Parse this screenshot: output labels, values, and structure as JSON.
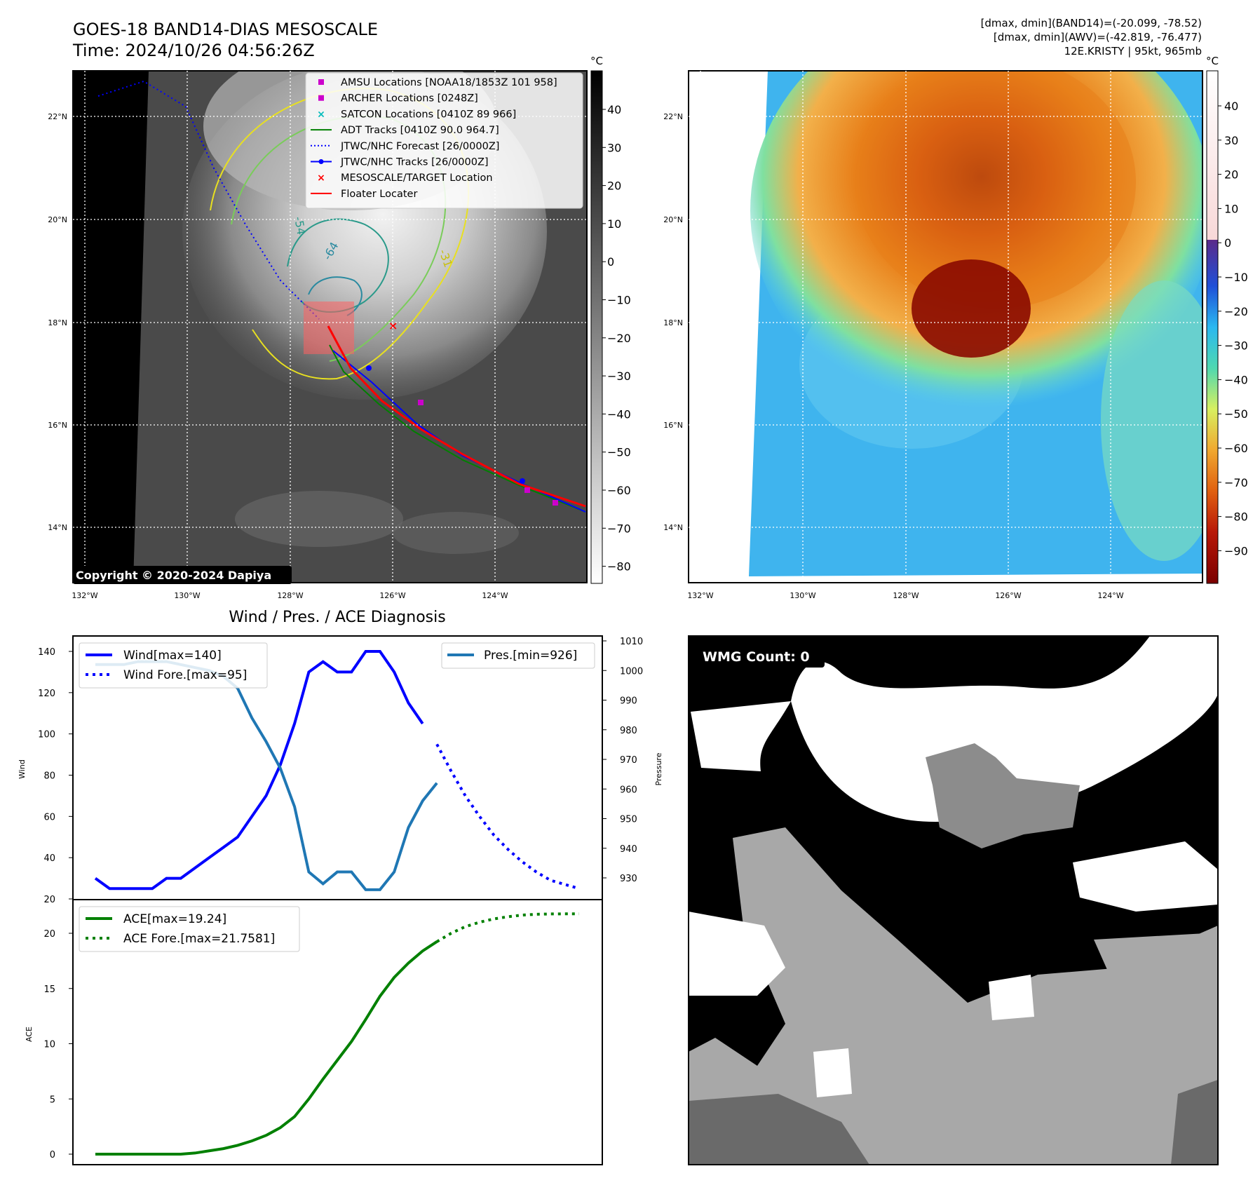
{
  "header": {
    "title": "GOES-18 BAND14-DIAS MESOSCALE",
    "time": "Time: 2024/10/26 04:56:26Z",
    "stats_band14": "[dmax, dmin](BAND14)=(-20.099, -78.52)",
    "stats_awv": "[dmax, dmin](AWV)=(-42.819, -76.477)",
    "storm": "12E.KRISTY | 95kt, 965mb"
  },
  "maps": {
    "lat_ticks": [
      "22°N",
      "20°N",
      "18°N",
      "16°N",
      "14°N"
    ],
    "lon_ticks": [
      "132°W",
      "130°W",
      "128°W",
      "126°W",
      "124°W"
    ],
    "copyright": "Copyright © 2020-2024 Dapiya",
    "contour_labels": [
      "-64",
      "-54",
      "-31"
    ],
    "legend": [
      {
        "label": "AMSU Locations [NOAA18/1853Z 101 958]",
        "color": "#cc00cc",
        "marker": "square"
      },
      {
        "label": "ARCHER Locations [0248Z]",
        "color": "#cc00cc",
        "marker": "square"
      },
      {
        "label": "SATCON Locations [0410Z 89 966]",
        "color": "#00bbbb",
        "marker": "x"
      },
      {
        "label": "ADT Tracks [0410Z 90.0 964.7]",
        "color": "#008000",
        "marker": "line"
      },
      {
        "label": "JTWC/NHC Forecast [26/0000Z]",
        "color": "#0000ff",
        "marker": "dotted"
      },
      {
        "label": "JTWC/NHC Tracks [26/0000Z]",
        "color": "#0000ff",
        "marker": "line-dot"
      },
      {
        "label": "MESOSCALE/TARGET Location",
        "color": "#ff0000",
        "marker": "x"
      },
      {
        "label": "Floater Locater",
        "color": "#ff0000",
        "marker": "line"
      }
    ]
  },
  "colorbars": {
    "unit": "°C",
    "ir_ticks": [
      "40",
      "30",
      "20",
      "10",
      "0",
      "−10",
      "−20",
      "−30",
      "−40",
      "−50",
      "−60",
      "−70",
      "−80"
    ],
    "awv_ticks": [
      "40",
      "30",
      "20",
      "10",
      "0",
      "−10",
      "−20",
      "−30",
      "−40",
      "−50",
      "−60",
      "−70",
      "−80",
      "−90"
    ]
  },
  "diagnosis": {
    "title": "Wind / Pres. / ACE Diagnosis"
  },
  "wmg": {
    "label": "WMG Count: 0"
  },
  "chart_data": [
    {
      "type": "line",
      "title": "Wind / Pres. / ACE Diagnosis",
      "ylabel": "Wind",
      "y2label": "Pressure",
      "ylim": [
        20,
        145
      ],
      "y2lim": [
        925,
        1011
      ],
      "yticks": [
        "20",
        "40",
        "60",
        "80",
        "100",
        "120",
        "140"
      ],
      "y2ticks": [
        "930",
        "940",
        "950",
        "960",
        "970",
        "980",
        "990",
        "1000",
        "1010"
      ],
      "x": [
        0,
        1,
        2,
        3,
        4,
        5,
        6,
        7,
        8,
        9,
        10,
        11,
        12,
        13,
        14,
        15,
        16,
        17,
        18,
        19,
        20,
        21,
        22,
        23,
        24,
        25,
        26,
        27,
        28,
        29,
        30,
        31,
        32,
        33,
        34
      ],
      "series": [
        {
          "name": "Wind[max=140]",
          "color": "#0000ff",
          "style": "solid",
          "x": [
            0,
            1,
            2,
            3,
            4,
            5,
            6,
            7,
            8,
            9,
            10,
            11,
            12,
            13,
            14,
            15,
            16,
            17,
            18,
            19,
            20,
            21,
            22,
            23
          ],
          "values": [
            30,
            25,
            25,
            25,
            25,
            30,
            30,
            35,
            40,
            45,
            50,
            60,
            70,
            85,
            105,
            130,
            135,
            130,
            130,
            140,
            140,
            130,
            115,
            105
          ]
        },
        {
          "name": "Wind Fore.[max=95]",
          "color": "#0000ff",
          "style": "dotted",
          "x": [
            24,
            25,
            26,
            27,
            28,
            29,
            30,
            31,
            32,
            33,
            34
          ],
          "values": [
            95,
            82,
            70,
            60,
            51,
            44,
            38,
            33,
            29,
            27,
            25
          ]
        },
        {
          "name": "Pres.[min=926]",
          "color": "#1f77b4",
          "style": "solid",
          "axis": "right",
          "x": [
            0,
            1,
            2,
            3,
            4,
            5,
            6,
            7,
            8,
            9,
            10,
            11,
            12,
            13,
            14,
            15,
            16,
            17,
            18,
            19,
            20,
            21,
            22,
            23,
            24
          ],
          "values": [
            1002,
            1002,
            1002,
            1003,
            1003,
            1003,
            1002,
            1001,
            1000,
            998,
            994,
            984,
            976,
            967,
            954,
            932,
            928,
            932,
            932,
            926,
            926,
            932,
            947,
            956,
            962
          ]
        }
      ]
    },
    {
      "type": "line",
      "ylabel": "ACE",
      "ylim": [
        -1,
        22.5
      ],
      "yticks": [
        "0",
        "5",
        "10",
        "15",
        "20"
      ],
      "x": [
        0,
        1,
        2,
        3,
        4,
        5,
        6,
        7,
        8,
        9,
        10,
        11,
        12,
        13,
        14,
        15,
        16,
        17,
        18,
        19,
        20,
        21,
        22,
        23,
        24,
        25,
        26,
        27,
        28,
        29,
        30,
        31,
        32,
        33,
        34
      ],
      "series": [
        {
          "name": "ACE[max=19.24]",
          "color": "#008000",
          "style": "solid",
          "x": [
            0,
            1,
            2,
            3,
            4,
            5,
            6,
            7,
            8,
            9,
            10,
            11,
            12,
            13,
            14,
            15,
            16,
            17,
            18,
            19,
            20,
            21,
            22,
            23,
            24
          ],
          "values": [
            0,
            0,
            0,
            0,
            0,
            0,
            0,
            0.1,
            0.3,
            0.5,
            0.8,
            1.2,
            1.7,
            2.4,
            3.4,
            5.0,
            6.8,
            8.5,
            10.2,
            12.2,
            14.3,
            16.0,
            17.3,
            18.4,
            19.24
          ]
        },
        {
          "name": "ACE Fore.[max=21.7581]",
          "color": "#008000",
          "style": "dotted",
          "x": [
            24,
            25,
            26,
            27,
            28,
            29,
            30,
            31,
            32,
            33,
            34
          ],
          "values": [
            19.24,
            20.0,
            20.6,
            21.0,
            21.3,
            21.5,
            21.65,
            21.72,
            21.75,
            21.758,
            21.758
          ]
        }
      ]
    }
  ]
}
